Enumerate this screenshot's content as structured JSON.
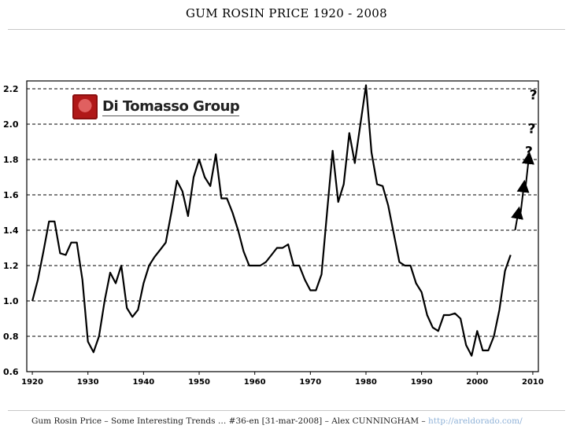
{
  "slide": {
    "title": "GUM ROSIN PRICE 1920 - 2008",
    "footer_text": "Gum Rosin Price – Some Interesting Trends … #36-en [31-mar-2008] – Alex CUNNINGHAM – ",
    "footer_link": "http://areldorado.com/"
  },
  "logo": {
    "text": "Di Tomasso Group"
  },
  "colors": {
    "line": "#000000",
    "grid": "#000000",
    "link": "#8fb2d8"
  },
  "chart_data": {
    "type": "line",
    "title": "GUM ROSIN PRICE 1920 - 2008",
    "xlabel": "",
    "ylabel": "",
    "xlim": [
      1919,
      2011
    ],
    "ylim": [
      0.6,
      2.2
    ],
    "x_ticks": [
      1920,
      1930,
      1940,
      1950,
      1960,
      1970,
      1980,
      1990,
      2000,
      2010
    ],
    "y_ticks": [
      0.6,
      0.8,
      1.0,
      1.2,
      1.4,
      1.6,
      1.8,
      2.0,
      2.2
    ],
    "y_tick_labels": [
      "0.6",
      "0.8",
      "1.0",
      "1.2",
      "1.4",
      "1.6",
      "1.8",
      "2.0",
      "2.2"
    ],
    "grid": "horizontal dashed",
    "series": [
      {
        "name": "Gum Rosin Price",
        "x": [
          1920,
          1921,
          1922,
          1923,
          1924,
          1925,
          1926,
          1927,
          1928,
          1929,
          1930,
          1931,
          1932,
          1933,
          1934,
          1935,
          1936,
          1937,
          1938,
          1939,
          1940,
          1941,
          1942,
          1943,
          1944,
          1945,
          1946,
          1947,
          1948,
          1949,
          1950,
          1951,
          1952,
          1953,
          1954,
          1955,
          1956,
          1957,
          1958,
          1959,
          1960,
          1961,
          1962,
          1963,
          1964,
          1965,
          1966,
          1967,
          1968,
          1969,
          1970,
          1971,
          1972,
          1973,
          1974,
          1975,
          1976,
          1977,
          1978,
          1979,
          1980,
          1981,
          1982,
          1983,
          1984,
          1985,
          1986,
          1987,
          1988,
          1989,
          1990,
          1991,
          1992,
          1993,
          1994,
          1995,
          1996,
          1997,
          1998,
          1999,
          2000,
          2001,
          2002,
          2003,
          2004,
          2005,
          2006
        ],
        "values": [
          1.0,
          1.12,
          1.28,
          1.45,
          1.45,
          1.27,
          1.26,
          1.33,
          1.33,
          1.12,
          0.77,
          0.71,
          0.8,
          1.0,
          1.16,
          1.1,
          1.2,
          0.96,
          0.91,
          0.95,
          1.1,
          1.2,
          1.25,
          1.29,
          1.33,
          1.5,
          1.68,
          1.62,
          1.48,
          1.7,
          1.8,
          1.7,
          1.65,
          1.83,
          1.58,
          1.58,
          1.5,
          1.4,
          1.28,
          1.2,
          1.2,
          1.2,
          1.22,
          1.26,
          1.3,
          1.3,
          1.32,
          1.2,
          1.2,
          1.12,
          1.06,
          1.06,
          1.15,
          1.5,
          1.85,
          1.56,
          1.66,
          1.95,
          1.78,
          2.0,
          2.22,
          1.84,
          1.66,
          1.65,
          1.54,
          1.38,
          1.22,
          1.2,
          1.2,
          1.1,
          1.05,
          0.92,
          0.85,
          0.83,
          0.92,
          0.92,
          0.93,
          0.9,
          0.75,
          0.69,
          0.83,
          0.72,
          0.72,
          0.8,
          0.95,
          1.17,
          1.26
        ]
      }
    ],
    "annotations": {
      "arrows_x": [
        2007.1,
        2008.1,
        2009.0
      ],
      "arrows_y_from": [
        1.4,
        1.5,
        1.65
      ],
      "arrows_y_to": [
        1.5,
        1.65,
        1.81
      ],
      "question_marks": [
        "?",
        "?",
        "?"
      ],
      "question_x": [
        2008.6,
        2009.1,
        2009.4
      ],
      "question_y": [
        1.82,
        1.95,
        2.14
      ]
    }
  }
}
